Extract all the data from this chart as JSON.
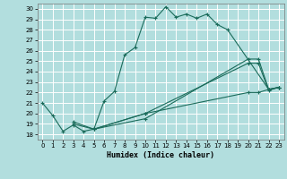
{
  "xlabel": "Humidex (Indice chaleur)",
  "bg_color": "#b2dede",
  "grid_color": "#ffffff",
  "line_color": "#1a6b5a",
  "xlim": [
    -0.5,
    23.5
  ],
  "ylim": [
    17.5,
    30.5
  ],
  "xticks": [
    0,
    1,
    2,
    3,
    4,
    5,
    6,
    7,
    8,
    9,
    10,
    11,
    12,
    13,
    14,
    15,
    16,
    17,
    18,
    19,
    20,
    21,
    22,
    23
  ],
  "yticks": [
    18,
    19,
    20,
    21,
    22,
    23,
    24,
    25,
    26,
    27,
    28,
    29,
    30
  ],
  "series1_x": [
    0,
    1,
    2,
    3,
    4,
    5,
    6,
    7,
    8,
    9,
    10,
    11,
    12,
    13,
    14,
    15,
    16,
    17,
    18,
    22,
    23
  ],
  "series1_y": [
    21.0,
    19.8,
    18.3,
    18.9,
    18.3,
    18.5,
    21.2,
    22.1,
    25.6,
    26.3,
    29.2,
    29.1,
    30.2,
    29.2,
    29.5,
    29.1,
    29.5,
    28.5,
    28.0,
    22.3,
    22.5
  ],
  "series2_x": [
    3,
    5,
    10,
    20,
    21,
    22,
    23
  ],
  "series2_y": [
    19.2,
    18.5,
    19.5,
    25.2,
    25.2,
    22.3,
    22.5
  ],
  "series3_x": [
    3,
    5,
    10,
    20,
    21,
    22,
    23
  ],
  "series3_y": [
    19.0,
    18.5,
    20.0,
    24.8,
    24.8,
    22.2,
    22.5
  ],
  "series4_x": [
    5,
    10,
    20,
    21,
    22,
    23
  ],
  "series4_y": [
    18.5,
    20.0,
    22.0,
    22.0,
    22.3,
    22.5
  ]
}
